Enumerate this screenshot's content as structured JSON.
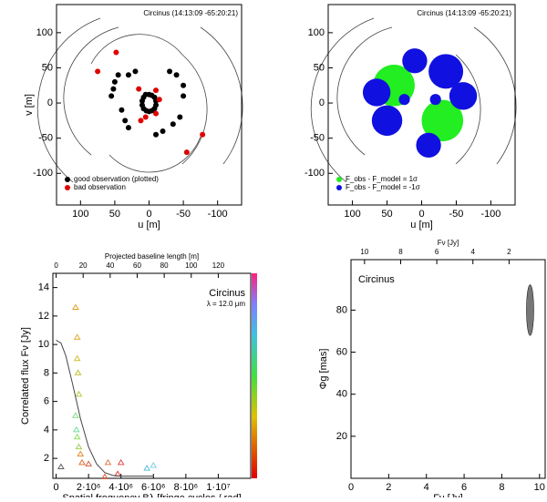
{
  "chart_data": [
    {
      "type": "scatter",
      "title": "Circinus (14:13:09 -65:20:21)",
      "xlabel": "u [m]",
      "ylabel": "v [m]",
      "xlim": [
        135,
        -135
      ],
      "ylim": [
        -145,
        140
      ],
      "xticks": [
        100,
        50,
        0,
        -50,
        -100
      ],
      "yticks": [
        -100,
        -50,
        0,
        50,
        100
      ],
      "legend": "lower left",
      "series": [
        {
          "name": "good observation (plotted)",
          "color": "#000000",
          "x": [
            5,
            8,
            10,
            10,
            8,
            4,
            0,
            -4,
            -8,
            -10,
            -10,
            -8,
            -4,
            0,
            45,
            50,
            52,
            55,
            40,
            35,
            30,
            -10,
            -20,
            -35,
            -45,
            -50,
            -50,
            -40,
            -30,
            20,
            30
          ],
          "y": [
            12,
            8,
            3,
            -3,
            -8,
            -11,
            -12,
            -11,
            -8,
            -3,
            3,
            8,
            11,
            12,
            40,
            30,
            20,
            10,
            -10,
            -25,
            -35,
            -45,
            -40,
            -30,
            -20,
            10,
            25,
            40,
            45,
            45,
            40
          ]
        },
        {
          "name": "bad observation",
          "color": "#e00000",
          "x": [
            48,
            75,
            15,
            -10,
            -15,
            5,
            12,
            -55,
            -78,
            -10
          ],
          "y": [
            72,
            45,
            20,
            18,
            5,
            -20,
            -25,
            -70,
            -45,
            -15
          ]
        }
      ]
    },
    {
      "type": "bubble",
      "title": "Circinus (14:13:09 -65:20:21)",
      "xlabel": "u [m]",
      "xlim": [
        135,
        -135
      ],
      "ylim": [
        -145,
        140
      ],
      "xticks": [
        100,
        50,
        0,
        -50,
        -100
      ],
      "yticks": [
        -100,
        -50,
        0,
        50,
        100
      ],
      "legend": "lower left",
      "series": [
        {
          "name": "F_obs - F_model = 1σ",
          "color": "#22ee22",
          "x": [
            40,
            -30
          ],
          "y": [
            25,
            -25
          ],
          "sizes": [
            30,
            30
          ]
        },
        {
          "name": "F_obs - F_model = -1σ",
          "color": "#1010e0",
          "x": [
            -35,
            50,
            -60,
            65,
            10,
            -10,
            25,
            -20
          ],
          "y": [
            45,
            -25,
            10,
            15,
            60,
            -60,
            5,
            5
          ],
          "sizes": [
            25,
            22,
            20,
            20,
            18,
            18,
            8,
            8
          ]
        }
      ]
    },
    {
      "type": "scatter",
      "xlabel": "Spatial frequency Bλ [fringe cycles / rad]",
      "ylabel": "Correlated flux Fν [Jy]",
      "x2label": "Projected baseline length [m]",
      "annotations": [
        "Circinus",
        "λ = 12.0 μm"
      ],
      "xlim": [
        -200000,
        12000000
      ],
      "ylim": [
        0.6,
        15
      ],
      "xticks": [
        0,
        {
          "value": 2000000,
          "label": "2·10⁶"
        },
        {
          "value": 4000000,
          "label": "4·10⁶"
        },
        {
          "value": 6000000,
          "label": "6·10⁶"
        },
        {
          "value": 8000000,
          "label": "8·10⁶"
        },
        {
          "value": 10000000,
          "label": "1·10⁷"
        }
      ],
      "x2lim": [
        -2.4,
        144
      ],
      "x2ticks": [
        0,
        20,
        40,
        60,
        80,
        100,
        120
      ],
      "yticks": [
        2,
        4,
        6,
        8,
        10,
        12,
        14
      ],
      "series": [
        {
          "marker": "triangle",
          "x": [
            1200000,
            1300000,
            1300000,
            1350000,
            1400000,
            1200000,
            1250000,
            1300000,
            1400000,
            1500000,
            1600000,
            2000000,
            3000000,
            3200000,
            4000000,
            5600000,
            6000000,
            3800000,
            300000
          ],
          "y": [
            12.6,
            10.5,
            9,
            8,
            6.5,
            5,
            4,
            3.5,
            2.8,
            2.3,
            1.7,
            1.6,
            0.7,
            1.7,
            1.7,
            1.3,
            1.5,
            0.9,
            1.4
          ],
          "colors": [
            "#e8a020",
            "#e0b030",
            "#d0c030",
            "#c0c030",
            "#b0d040",
            "#80e080",
            "#70e0a0",
            "#90e060",
            "#a0d050",
            "#e09030",
            "#e07030",
            "#d06040",
            "#e06040",
            "#e08050",
            "#e05050",
            "#60c0e0",
            "#80d0e0",
            "#e04040",
            "#606060"
          ]
        },
        {
          "kind": "line",
          "color": "#444444",
          "x": [
            0,
            300000,
            600000,
            1000000,
            1500000,
            2000000,
            2500000,
            3000000,
            3500000,
            4000000,
            5000000,
            6000000
          ],
          "y": [
            10.3,
            10.1,
            9.2,
            7.3,
            4.8,
            2.8,
            1.6,
            1.0,
            0.8,
            0.75,
            0.75,
            0.75
          ]
        }
      ]
    },
    {
      "type": "scatter",
      "xlabel": "Fν [Jy]",
      "ylabel": "Φg [mas]",
      "x2label": "Fν [Jy]",
      "annotations": [
        "Circinus"
      ],
      "xlim": [
        0,
        10.3
      ],
      "ylim": [
        0,
        104
      ],
      "xticks": [
        0,
        2,
        4,
        6,
        8,
        10
      ],
      "yticks": [
        20,
        40,
        60,
        80
      ],
      "x2lim": [
        10.75,
        0
      ],
      "x2ticks": [
        10,
        8,
        6,
        4,
        2
      ],
      "series": [
        {
          "marker": "ellipse",
          "color": "#777777",
          "x": [
            9.5
          ],
          "y": [
            80
          ]
        }
      ]
    }
  ]
}
